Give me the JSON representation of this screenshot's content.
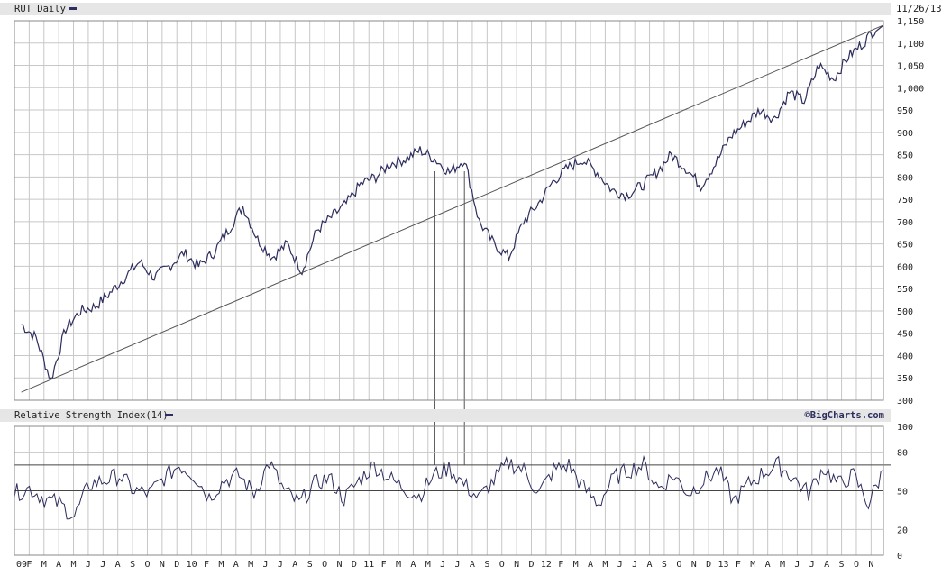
{
  "header": {
    "title": "RUT Daily",
    "date": "11/26/13"
  },
  "indicator": {
    "title": "Relative Strength Index(14)",
    "watermark": "©BigCharts.com"
  },
  "colors": {
    "series": "#2d2d5e",
    "grid": "#c7c7c7",
    "header_band": "#e6e6e6",
    "trendline": "#555555"
  },
  "chart_data": [
    {
      "type": "line",
      "title": "RUT Daily",
      "ylim": [
        300,
        1150
      ],
      "y_ticks": [
        "1,150",
        "1,100",
        "1,050",
        "1,000",
        "950",
        "900",
        "850",
        "800",
        "750",
        "700",
        "650",
        "600",
        "550",
        "500",
        "450",
        "400",
        "350",
        "300"
      ],
      "x_tick_labels": [
        "09",
        "F",
        "M",
        "A",
        "M",
        "J",
        "J",
        "A",
        "S",
        "O",
        "N",
        "D",
        "10",
        "F",
        "M",
        "A",
        "M",
        "J",
        "J",
        "A",
        "S",
        "O",
        "N",
        "D",
        "11",
        "F",
        "M",
        "A",
        "M",
        "J",
        "J",
        "A",
        "S",
        "O",
        "N",
        "D",
        "12",
        "F",
        "M",
        "A",
        "M",
        "J",
        "J",
        "A",
        "S",
        "O",
        "N",
        "D",
        "13",
        "F",
        "M",
        "A",
        "M",
        "J",
        "J",
        "A",
        "S",
        "O",
        "N"
      ],
      "x_period": [
        "2009-01",
        "2013-11-26"
      ],
      "series": [
        {
          "approximate_monthly_close": [
            {
              "date": "2009-01",
              "value": 470
            },
            {
              "date": "2009-02",
              "value": 440
            },
            {
              "date": "2009-03",
              "value": 345
            },
            {
              "date": "2009-04",
              "value": 460
            },
            {
              "date": "2009-05",
              "value": 500
            },
            {
              "date": "2009-06",
              "value": 510
            },
            {
              "date": "2009-07",
              "value": 540
            },
            {
              "date": "2009-08",
              "value": 575
            },
            {
              "date": "2009-09",
              "value": 610
            },
            {
              "date": "2009-10",
              "value": 575
            },
            {
              "date": "2009-11",
              "value": 600
            },
            {
              "date": "2009-12",
              "value": 630
            },
            {
              "date": "2010-01",
              "value": 600
            },
            {
              "date": "2010-02",
              "value": 630
            },
            {
              "date": "2010-03",
              "value": 680
            },
            {
              "date": "2010-04",
              "value": 735
            },
            {
              "date": "2010-05",
              "value": 660
            },
            {
              "date": "2010-06",
              "value": 620
            },
            {
              "date": "2010-07",
              "value": 650
            },
            {
              "date": "2010-08",
              "value": 590
            },
            {
              "date": "2010-09",
              "value": 680
            },
            {
              "date": "2010-10",
              "value": 710
            },
            {
              "date": "2010-11",
              "value": 740
            },
            {
              "date": "2010-12",
              "value": 785
            },
            {
              "date": "2011-01",
              "value": 800
            },
            {
              "date": "2011-02",
              "value": 830
            },
            {
              "date": "2011-03",
              "value": 840
            },
            {
              "date": "2011-04",
              "value": 860
            },
            {
              "date": "2011-05",
              "value": 840
            },
            {
              "date": "2011-06",
              "value": 810
            },
            {
              "date": "2011-07",
              "value": 840
            },
            {
              "date": "2011-08",
              "value": 700
            },
            {
              "date": "2011-09",
              "value": 650
            },
            {
              "date": "2011-10",
              "value": 620
            },
            {
              "date": "2011-11",
              "value": 700
            },
            {
              "date": "2011-12",
              "value": 740
            },
            {
              "date": "2012-01",
              "value": 790
            },
            {
              "date": "2012-02",
              "value": 820
            },
            {
              "date": "2012-03",
              "value": 840
            },
            {
              "date": "2012-04",
              "value": 810
            },
            {
              "date": "2012-05",
              "value": 770
            },
            {
              "date": "2012-06",
              "value": 760
            },
            {
              "date": "2012-07",
              "value": 780
            },
            {
              "date": "2012-08",
              "value": 810
            },
            {
              "date": "2012-09",
              "value": 850
            },
            {
              "date": "2012-10",
              "value": 820
            },
            {
              "date": "2012-11",
              "value": 780
            },
            {
              "date": "2012-12",
              "value": 830
            },
            {
              "date": "2013-01",
              "value": 890
            },
            {
              "date": "2013-02",
              "value": 920
            },
            {
              "date": "2013-03",
              "value": 950
            },
            {
              "date": "2013-04",
              "value": 930
            },
            {
              "date": "2013-05",
              "value": 990
            },
            {
              "date": "2013-06",
              "value": 970
            },
            {
              "date": "2013-07",
              "value": 1050
            },
            {
              "date": "2013-08",
              "value": 1020
            },
            {
              "date": "2013-09",
              "value": 1070
            },
            {
              "date": "2013-10",
              "value": 1100
            },
            {
              "date": "2013-11",
              "value": 1140
            }
          ]
        }
      ],
      "annotations": [
        {
          "type": "trendline",
          "from": {
            "date": "2009-01",
            "value": 318
          },
          "to": {
            "date": "2013-11-26",
            "value": 1140
          }
        },
        {
          "type": "vertical-line",
          "at": "2011-05"
        },
        {
          "type": "vertical-line",
          "at": "2011-07"
        }
      ],
      "grid": true
    },
    {
      "type": "line",
      "title": "Relative Strength Index(14)",
      "ylim": [
        0,
        100
      ],
      "y_ticks": [
        "100",
        "80",
        "50",
        "20",
        "0"
      ],
      "reference_lines": [
        50,
        70
      ],
      "series": [
        {
          "approximate_values": [
            48,
            52,
            44,
            40,
            30,
            55,
            58,
            62,
            50,
            48,
            60,
            70,
            62,
            45,
            58,
            62,
            48,
            72,
            50,
            40,
            55,
            60,
            44,
            58,
            70,
            60,
            52,
            46,
            62,
            68,
            55,
            44,
            58,
            72,
            66,
            48,
            66,
            70,
            52,
            40,
            60,
            66,
            70,
            52,
            62,
            48,
            58,
            66,
            42,
            55,
            64,
            70,
            60,
            48,
            68,
            55,
            62,
            40,
            66
          ]
        }
      ],
      "grid": true
    }
  ]
}
